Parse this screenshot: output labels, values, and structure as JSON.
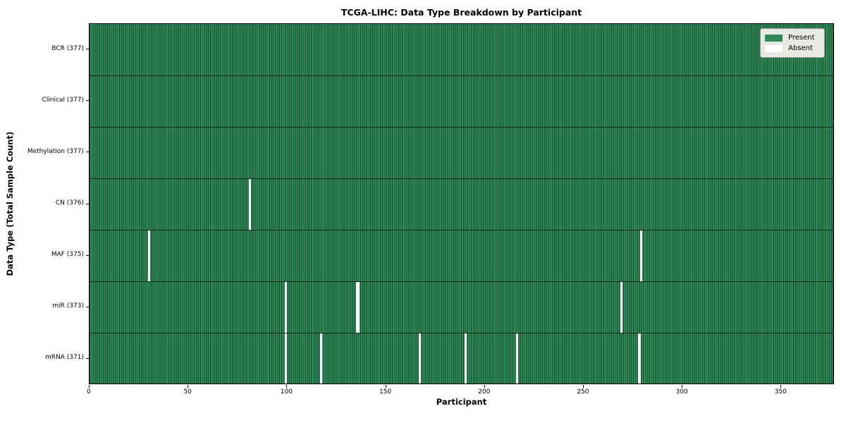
{
  "chart_data": {
    "type": "heatmap",
    "title": "TCGA-LIHC: Data Type Breakdown by Participant",
    "xlabel": "Participant",
    "ylabel": "Data Type (Total Sample Count)",
    "n_participants": 377,
    "x_axis": {
      "min": 0,
      "max": 377,
      "ticks": [
        0,
        50,
        100,
        150,
        200,
        250,
        300,
        350
      ]
    },
    "legend": {
      "position": "upper right",
      "entries": [
        {
          "label": "Present",
          "color": "#2e8b57"
        },
        {
          "label": "Absent",
          "color": "#ffffff"
        }
      ]
    },
    "rows": [
      {
        "label": "BCR (377)",
        "data_type": "BCR",
        "present_count": 377,
        "absent_participants": []
      },
      {
        "label": "Clinical (377)",
        "data_type": "Clinical",
        "present_count": 377,
        "absent_participants": []
      },
      {
        "label": "Methylation (377)",
        "data_type": "Methylation",
        "present_count": 377,
        "absent_participants": []
      },
      {
        "label": "CN (376)",
        "data_type": "CN",
        "present_count": 376,
        "absent_participants": [
          81
        ]
      },
      {
        "label": "MAF (375)",
        "data_type": "MAF",
        "present_count": 375,
        "absent_participants": [
          30,
          279
        ]
      },
      {
        "label": "miR (373)",
        "data_type": "miR",
        "present_count": 373,
        "absent_participants": [
          99,
          135,
          136,
          269
        ]
      },
      {
        "label": "mRNA (371)",
        "data_type": "mRNA",
        "present_count": 371,
        "absent_participants": [
          99,
          117,
          167,
          190,
          216,
          278
        ]
      }
    ],
    "colors": {
      "present": "#2e8b57",
      "absent": "#ffffff",
      "cell_gridline": "#1b4c2f",
      "row_separator": "#16281d",
      "plot_border": "#000000",
      "legend_background": "#e6eae3",
      "legend_border": "#999999",
      "text": "#000000"
    }
  }
}
